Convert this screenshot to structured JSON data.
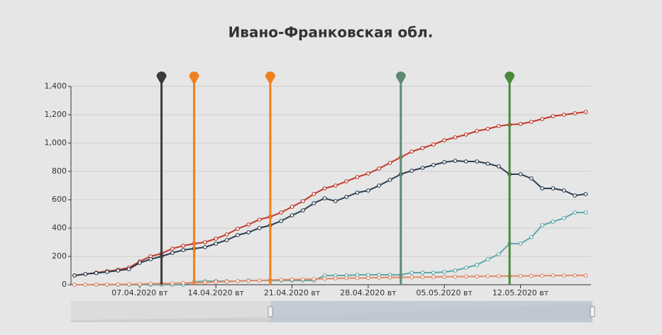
{
  "chart_data": {
    "type": "line",
    "title": "Ивано-Франковская обл.",
    "x": [
      "01.04.2020",
      "02.04.2020",
      "03.04.2020",
      "04.04.2020",
      "05.04.2020",
      "06.04.2020",
      "07.04.2020",
      "08.04.2020",
      "09.04.2020",
      "10.04.2020",
      "11.04.2020",
      "12.04.2020",
      "13.04.2020",
      "14.04.2020",
      "15.04.2020",
      "16.04.2020",
      "17.04.2020",
      "18.04.2020",
      "19.04.2020",
      "20.04.2020",
      "21.04.2020",
      "22.04.2020",
      "23.04.2020",
      "24.04.2020",
      "25.04.2020",
      "26.04.2020",
      "27.04.2020",
      "28.04.2020",
      "29.04.2020",
      "30.04.2020",
      "01.05.2020",
      "02.05.2020",
      "03.05.2020",
      "04.05.2020",
      "05.05.2020",
      "06.05.2020",
      "07.05.2020",
      "08.05.2020",
      "09.05.2020",
      "10.05.2020",
      "11.05.2020",
      "12.05.2020",
      "13.05.2020",
      "14.05.2020",
      "15.05.2020",
      "16.05.2020",
      "17.05.2020",
      "18.05.2020"
    ],
    "xticks": [
      {
        "value": "07.04.2020",
        "label": "07.04.2020 вт"
      },
      {
        "value": "14.04.2020",
        "label": "14.04.2020 вт"
      },
      {
        "value": "21.04.2020",
        "label": "21.04.2020 вт"
      },
      {
        "value": "28.04.2020",
        "label": "28.04.2020 вт"
      },
      {
        "value": "05.05.2020",
        "label": "05.05.2020 вт"
      },
      {
        "value": "12.05.2020",
        "label": "12.05.2020 вт"
      }
    ],
    "ylim": [
      0,
      1400
    ],
    "yticks": [
      0,
      200,
      400,
      600,
      800,
      {
        "value": 1000,
        "label": "1,000"
      },
      {
        "value": 1200,
        "label": "1,200"
      },
      {
        "value": 1400,
        "label": "1,400"
      }
    ],
    "grid": true,
    "series": [
      {
        "color": "#c0392b",
        "values": [
          65,
          75,
          85,
          95,
          105,
          120,
          165,
          200,
          220,
          255,
          275,
          290,
          300,
          325,
          355,
          395,
          425,
          460,
          480,
          510,
          550,
          590,
          640,
          680,
          700,
          730,
          760,
          785,
          820,
          860,
          900,
          940,
          965,
          990,
          1020,
          1040,
          1060,
          1085,
          1100,
          1120,
          1130,
          1135,
          1150,
          1170,
          1190,
          1200,
          1210,
          1220
        ]
      },
      {
        "color": "#2c3e50",
        "values": [
          65,
          75,
          82,
          90,
          100,
          110,
          155,
          180,
          200,
          225,
          245,
          255,
          265,
          290,
          315,
          350,
          370,
          400,
          420,
          450,
          490,
          525,
          575,
          610,
          590,
          620,
          650,
          665,
          700,
          740,
          780,
          805,
          825,
          845,
          865,
          875,
          870,
          870,
          855,
          835,
          780,
          780,
          750,
          680,
          680,
          665,
          630,
          640
        ]
      },
      {
        "color": "#5fa8aa",
        "values": [
          0,
          0,
          0,
          0,
          0,
          0,
          0,
          0,
          0,
          0,
          0,
          20,
          25,
          25,
          25,
          25,
          30,
          30,
          30,
          30,
          30,
          30,
          30,
          65,
          65,
          65,
          70,
          70,
          70,
          70,
          70,
          85,
          85,
          85,
          90,
          100,
          120,
          140,
          180,
          215,
          290,
          290,
          335,
          420,
          445,
          470,
          510,
          510
        ]
      },
      {
        "color": "#e08a6a",
        "values": [
          0,
          0,
          1,
          2,
          2,
          3,
          5,
          7,
          8,
          10,
          12,
          14,
          16,
          20,
          22,
          25,
          28,
          30,
          33,
          35,
          37,
          38,
          40,
          42,
          44,
          46,
          47,
          48,
          50,
          51,
          52,
          53,
          54,
          55,
          56,
          57,
          58,
          59,
          60,
          60,
          61,
          62,
          63,
          64,
          65,
          65,
          66,
          66
        ]
      }
    ],
    "markers": [
      {
        "x": "09.04.2020",
        "color": "#3a3a3a"
      },
      {
        "x": "12.04.2020",
        "color": "#f07f1e"
      },
      {
        "x": "19.04.2020",
        "color": "#f07f1e"
      },
      {
        "x": "01.05.2020",
        "color": "#5b8a72"
      },
      {
        "x": "11.05.2020",
        "color": "#4a8a3a"
      }
    ]
  }
}
